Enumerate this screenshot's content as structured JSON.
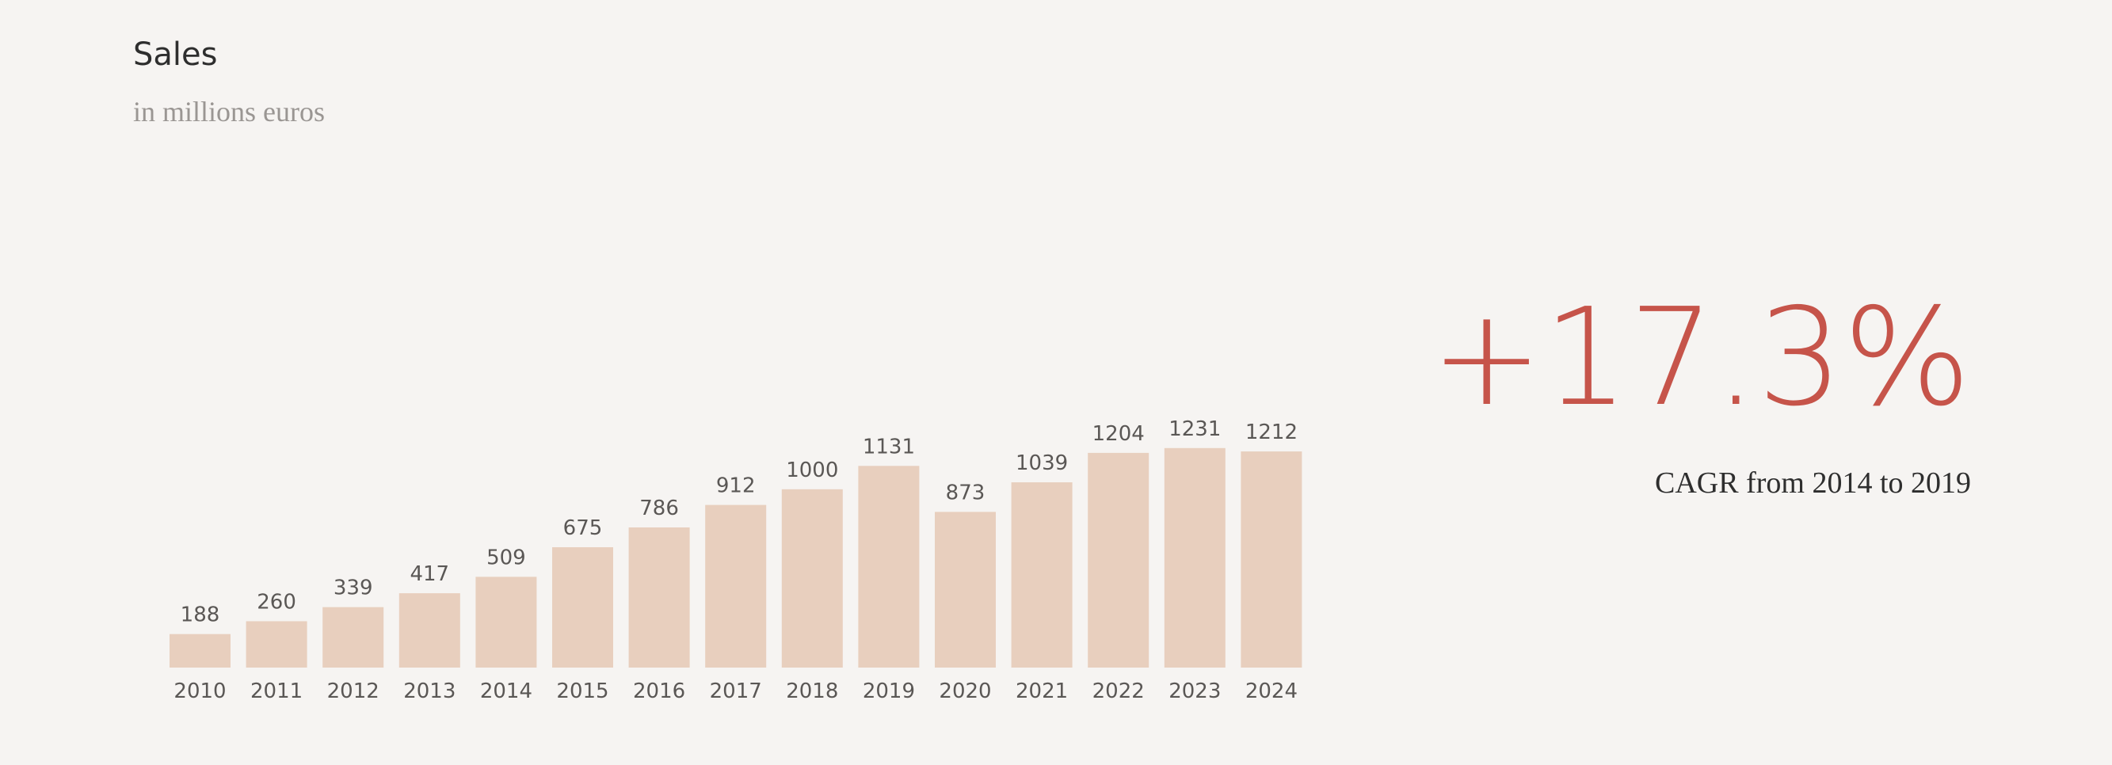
{
  "chart_data": {
    "type": "bar",
    "title": "Sales",
    "subtitle": "in millions euros",
    "categories": [
      "2010",
      "2011",
      "2012",
      "2013",
      "2014",
      "2015",
      "2016",
      "2017",
      "2018",
      "2019",
      "2020",
      "2021",
      "2022",
      "2023",
      "2024"
    ],
    "values": [
      188,
      260,
      339,
      417,
      509,
      675,
      786,
      912,
      1000,
      1131,
      873,
      1039,
      1204,
      1231,
      1212
    ],
    "color": "#e8cfbe"
  },
  "kpi": {
    "value": "+17.3%",
    "caption": "CAGR from 2014 to 2019",
    "color": "#c6544a"
  }
}
